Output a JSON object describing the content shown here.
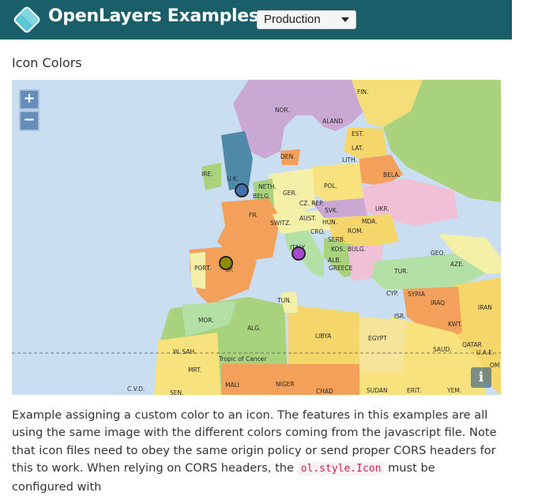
{
  "header": {
    "brand": "OpenLayers Examples",
    "version_select": "Production",
    "colors": {
      "bar": "#1a5e6a",
      "logo": "#5bc6d5"
    }
  },
  "page": {
    "title": "Icon Colors"
  },
  "map": {
    "controls": {
      "zoom_in": "+",
      "zoom_out": "−",
      "attribution": "i"
    },
    "tropic_label": "Tropic of Cancer",
    "country_labels": [
      "FIN.",
      "NOR.",
      "ALAND",
      "EST.",
      "LAT.",
      "LITH.",
      "DEN.",
      "BELA.",
      "IRE.",
      "U.K.",
      "NETH.",
      "BELG.",
      "GER.",
      "POL.",
      "CZ. REP.",
      "SVK.",
      "UKR.",
      "FR.",
      "SWITZ.",
      "AUST.",
      "HUN.",
      "MDA.",
      "CRO.",
      "ROM.",
      "SERB.",
      "ITALY",
      "KOS.",
      "BULG.",
      "ALB.",
      "GREECE",
      "PORT.",
      "SP.",
      "GEO.",
      "AZE.",
      "TUR.",
      "CYP.",
      "SYRIA",
      "IRAQ",
      "IRAN",
      "ISR.",
      "KWT.",
      "TUN.",
      "MOR.",
      "ALG.",
      "LIBYA",
      "EGYPT",
      "SAUD.",
      "QATAR",
      "U.A.E.",
      "OM",
      "W. SAH.",
      "MRT.",
      "MALI",
      "NIGER",
      "CHAD",
      "SUDAN",
      "ERIT.",
      "YEM.",
      "C.V.D.",
      "SEN."
    ],
    "icons": [
      {
        "name": "London",
        "color": "#4271ae"
      },
      {
        "name": "Madrid",
        "color": "#8f8e00"
      },
      {
        "name": "Rome",
        "color": "#a64bcc"
      }
    ]
  },
  "description": {
    "text_before": "Example assigning a custom color to an icon. The features in this examples are all using the same image with the different colors coming from the javascript file. Note that icon files need to obey the same origin policy or send proper CORS headers for this to work. When relying on CORS headers, the ",
    "code": "ol.style.Icon",
    "text_after": " must be configured with"
  }
}
